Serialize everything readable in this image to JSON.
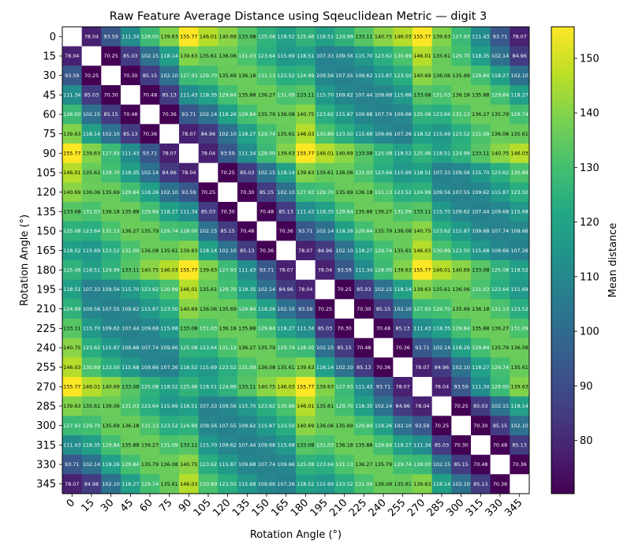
{
  "chart_data": {
    "type": "heatmap",
    "title": "Raw Feature Average Distance using Sqeuclidean Metric — digit 3",
    "xlabel": "Rotation Angle (°)",
    "ylabel": "Rotation Angle (°)",
    "colorbar_label": "Mean distance",
    "colormap": "viridis",
    "vmin": 70.25,
    "vmax": 155.77,
    "colorbar_ticks": [
      80,
      90,
      100,
      110,
      120,
      130,
      140,
      150
    ],
    "diagonal_masked": true,
    "diagonal_color": "#ffffff",
    "angles": [
      0,
      15,
      30,
      45,
      60,
      75,
      90,
      105,
      120,
      135,
      150,
      165,
      180,
      195,
      210,
      225,
      240,
      255,
      270,
      285,
      300,
      315,
      330,
      345
    ],
    "matrix": [
      [
        null,
        78.04,
        93.59,
        111.34,
        128.0,
        139.63,
        155.77,
        146.01,
        140.69,
        133.08,
        125.08,
        118.52,
        125.46,
        118.51,
        124.99,
        133.11,
        140.75,
        146.03,
        155.77,
        139.63,
        127.93,
        111.43,
        93.71,
        78.07
      ],
      [
        78.04,
        null,
        70.25,
        85.03,
        102.15,
        118.14,
        139.63,
        135.61,
        136.06,
        131.03,
        123.64,
        115.69,
        118.51,
        107.33,
        109.56,
        115.7,
        123.62,
        130.89,
        146.01,
        135.61,
        129.7,
        118.35,
        102.14,
        84.96
      ],
      [
        93.59,
        70.25,
        null,
        70.3,
        85.15,
        102.1,
        127.93,
        129.7,
        135.69,
        136.18,
        131.13,
        123.52,
        124.99,
        109.56,
        107.55,
        109.62,
        115.87,
        123.5,
        140.69,
        136.06,
        135.69,
        129.84,
        118.27,
        102.1
      ],
      [
        111.34,
        85.03,
        70.3,
        null,
        70.48,
        85.13,
        111.43,
        118.35,
        129.84,
        135.88,
        136.27,
        131.09,
        133.11,
        115.7,
        109.62,
        107.44,
        109.68,
        115.68,
        133.08,
        131.03,
        136.18,
        135.88,
        129.84,
        118.27
      ],
      [
        128.0,
        102.15,
        85.15,
        70.48,
        null,
        70.36,
        93.71,
        102.14,
        118.26,
        129.84,
        135.79,
        136.08,
        140.75,
        123.62,
        115.87,
        109.68,
        107.74,
        109.66,
        125.08,
        123.64,
        131.13,
        136.27,
        135.79,
        129.74
      ],
      [
        139.63,
        118.14,
        102.1,
        85.13,
        70.36,
        null,
        78.07,
        84.96,
        102.1,
        118.27,
        129.74,
        135.61,
        146.03,
        130.89,
        123.5,
        115.68,
        109.66,
        107.26,
        118.52,
        115.69,
        123.52,
        131.09,
        136.08,
        135.61
      ],
      [
        155.77,
        139.63,
        127.93,
        111.43,
        93.71,
        78.07,
        null,
        78.04,
        93.59,
        111.34,
        128.0,
        139.63,
        155.77,
        146.01,
        140.69,
        133.08,
        125.08,
        118.52,
        125.46,
        118.51,
        124.99,
        133.11,
        140.75,
        146.03
      ],
      [
        146.01,
        135.61,
        129.7,
        118.35,
        102.14,
        84.96,
        78.04,
        null,
        70.25,
        85.03,
        102.15,
        118.14,
        139.63,
        135.61,
        136.06,
        131.03,
        123.64,
        115.69,
        118.51,
        107.33,
        109.56,
        115.7,
        123.62,
        130.89
      ],
      [
        140.69,
        136.06,
        135.69,
        129.84,
        118.26,
        102.1,
        93.59,
        70.25,
        null,
        70.3,
        85.15,
        102.1,
        127.93,
        129.7,
        135.69,
        136.18,
        131.13,
        123.52,
        124.99,
        109.56,
        107.55,
        109.62,
        115.87,
        123.5
      ],
      [
        133.08,
        131.03,
        136.18,
        135.88,
        129.84,
        118.27,
        111.34,
        85.03,
        70.3,
        null,
        70.48,
        85.13,
        111.43,
        118.35,
        129.84,
        135.88,
        136.27,
        131.09,
        133.11,
        115.7,
        109.62,
        107.44,
        109.68,
        115.68
      ],
      [
        125.08,
        123.64,
        131.13,
        136.27,
        135.79,
        129.74,
        128.0,
        102.15,
        85.15,
        70.48,
        null,
        70.36,
        93.71,
        102.14,
        118.26,
        129.84,
        135.79,
        136.08,
        140.75,
        123.62,
        115.87,
        109.68,
        107.74,
        109.66
      ],
      [
        118.52,
        115.69,
        123.52,
        131.09,
        136.08,
        135.61,
        139.63,
        118.14,
        102.1,
        85.13,
        70.36,
        null,
        78.07,
        84.96,
        102.1,
        118.27,
        129.74,
        135.61,
        146.03,
        130.89,
        123.5,
        115.68,
        109.66,
        107.26
      ],
      [
        125.46,
        118.51,
        124.99,
        133.11,
        140.75,
        146.03,
        155.77,
        139.63,
        127.93,
        111.43,
        93.71,
        78.07,
        null,
        78.04,
        93.59,
        111.34,
        128.0,
        139.63,
        155.77,
        146.01,
        140.69,
        133.08,
        125.08,
        118.52
      ],
      [
        118.51,
        107.33,
        109.56,
        115.7,
        123.62,
        130.89,
        146.01,
        135.61,
        129.7,
        118.35,
        102.14,
        84.96,
        78.04,
        null,
        70.25,
        85.03,
        102.15,
        118.14,
        139.63,
        135.61,
        136.06,
        131.03,
        123.64,
        115.69
      ],
      [
        124.99,
        109.56,
        107.55,
        109.62,
        115.87,
        123.5,
        140.69,
        136.06,
        135.69,
        129.84,
        118.26,
        102.1,
        93.59,
        70.25,
        null,
        70.3,
        85.15,
        102.1,
        127.93,
        129.7,
        135.69,
        136.18,
        131.13,
        123.52
      ],
      [
        133.11,
        115.7,
        109.62,
        107.44,
        109.68,
        115.68,
        133.08,
        131.03,
        136.18,
        135.88,
        129.84,
        118.27,
        111.34,
        85.03,
        70.3,
        null,
        70.48,
        85.13,
        111.43,
        118.35,
        129.84,
        135.88,
        136.27,
        131.09
      ],
      [
        140.75,
        123.62,
        115.87,
        109.68,
        107.74,
        109.66,
        125.08,
        123.64,
        131.13,
        136.27,
        135.79,
        129.74,
        128.0,
        102.15,
        85.15,
        70.48,
        null,
        70.36,
        93.71,
        102.14,
        118.26,
        129.84,
        135.79,
        136.08
      ],
      [
        146.03,
        130.89,
        123.5,
        115.68,
        109.66,
        107.26,
        118.52,
        115.69,
        123.52,
        131.09,
        136.08,
        135.61,
        139.63,
        118.14,
        102.1,
        85.13,
        70.36,
        null,
        78.07,
        84.96,
        102.1,
        118.27,
        129.74,
        135.61
      ],
      [
        155.77,
        146.01,
        140.69,
        133.08,
        125.08,
        118.52,
        125.46,
        118.51,
        124.99,
        133.11,
        140.75,
        146.03,
        155.77,
        139.63,
        127.93,
        111.43,
        93.71,
        78.07,
        null,
        78.04,
        93.59,
        111.34,
        128.0,
        139.63
      ],
      [
        139.63,
        135.61,
        136.06,
        131.03,
        123.64,
        115.69,
        118.51,
        107.33,
        109.56,
        115.7,
        123.62,
        130.89,
        146.01,
        135.61,
        129.7,
        118.35,
        102.14,
        84.96,
        78.04,
        null,
        70.25,
        85.03,
        102.15,
        118.14
      ],
      [
        127.93,
        129.7,
        135.69,
        136.18,
        131.13,
        123.52,
        124.99,
        109.56,
        107.55,
        109.62,
        115.87,
        123.5,
        140.69,
        136.06,
        135.69,
        129.84,
        118.26,
        102.1,
        93.59,
        70.25,
        null,
        70.3,
        85.15,
        102.1
      ],
      [
        111.43,
        118.35,
        129.84,
        135.88,
        136.27,
        131.09,
        133.11,
        115.7,
        109.62,
        107.44,
        109.68,
        115.68,
        133.08,
        131.03,
        136.18,
        135.88,
        129.84,
        118.27,
        111.34,
        85.03,
        70.3,
        null,
        70.48,
        85.13
      ],
      [
        93.71,
        102.14,
        118.26,
        129.84,
        135.79,
        136.08,
        140.75,
        123.62,
        115.87,
        109.68,
        107.74,
        109.66,
        125.08,
        123.64,
        131.13,
        136.27,
        135.79,
        129.74,
        128.0,
        102.15,
        85.15,
        70.48,
        null,
        70.36
      ],
      [
        78.07,
        84.96,
        102.1,
        118.27,
        129.74,
        135.61,
        146.03,
        130.89,
        123.5,
        115.68,
        109.66,
        107.26,
        118.52,
        115.69,
        123.52,
        131.09,
        136.08,
        135.61,
        139.63,
        118.14,
        102.1,
        85.13,
        70.36,
        null
      ]
    ]
  }
}
